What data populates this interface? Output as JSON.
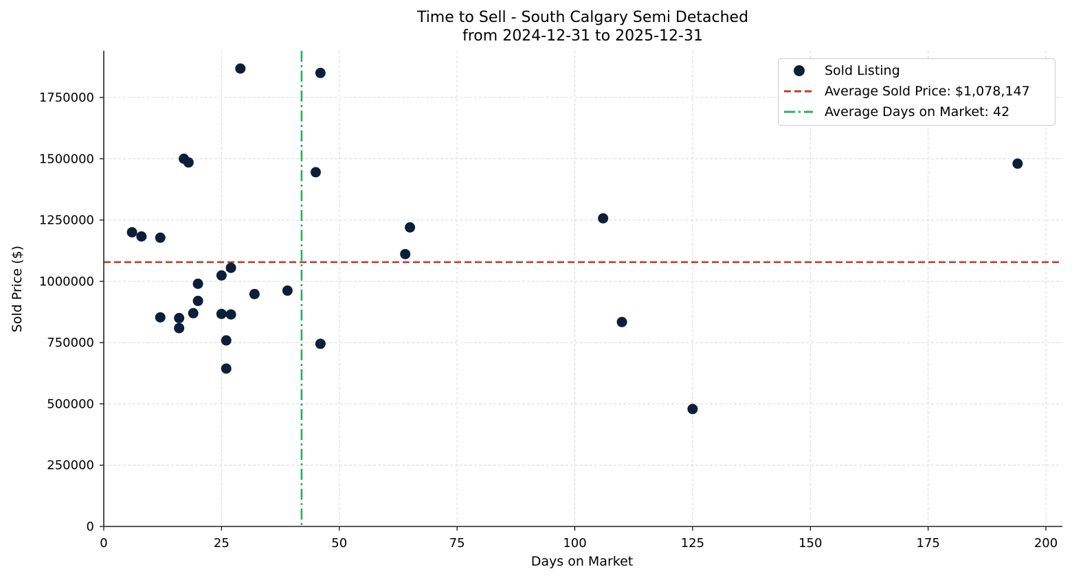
{
  "title": {
    "line1": "Time to Sell - South Calgary Semi Detached",
    "line2": "from 2024-12-31 to 2025-12-31"
  },
  "axes": {
    "xlabel": "Days on Market",
    "ylabel": "Sold Price ($)",
    "xticks": [
      "0",
      "25",
      "50",
      "75",
      "100",
      "125",
      "150",
      "175",
      "200"
    ],
    "yticks": [
      "0",
      "250000",
      "500000",
      "750000",
      "1000000",
      "1250000",
      "1500000",
      "1750000"
    ]
  },
  "legend": {
    "items": [
      {
        "label": "Sold Listing",
        "type": "marker",
        "color": "#0b1f3a"
      },
      {
        "label": "Average Sold Price: $1,078,147",
        "type": "dashed",
        "color": "#c0392b"
      },
      {
        "label": "Average Days on Market: 42",
        "type": "dashdot",
        "color": "#27ae60"
      }
    ]
  },
  "colors": {
    "marker": "#0b1f3a",
    "avg_price_line": "#c0392b",
    "avg_days_line": "#27ae60",
    "grid": "#d9d9d9"
  },
  "chart_data": {
    "type": "scatter",
    "title": "Time to Sell - South Calgary Semi Detached\nfrom 2024-12-31 to 2025-12-31",
    "xlabel": "Days on Market",
    "ylabel": "Sold Price ($)",
    "xlim": [
      0,
      203
    ],
    "ylim": [
      0,
      1940000
    ],
    "grid": true,
    "legend_position": "upper right",
    "series": [
      {
        "name": "Sold Listing",
        "points": [
          [
            6,
            1200000
          ],
          [
            8,
            1183000
          ],
          [
            12,
            1178000
          ],
          [
            17,
            1500000
          ],
          [
            18,
            1485000
          ],
          [
            29,
            1868000
          ],
          [
            46,
            1850000
          ],
          [
            45,
            1445000
          ],
          [
            27,
            1055000
          ],
          [
            25,
            1024000
          ],
          [
            20,
            990000
          ],
          [
            20,
            920000
          ],
          [
            32,
            948000
          ],
          [
            39,
            962000
          ],
          [
            12,
            853000
          ],
          [
            16,
            850000
          ],
          [
            19,
            870000
          ],
          [
            25,
            867000
          ],
          [
            27,
            865000
          ],
          [
            16,
            809000
          ],
          [
            26,
            759000
          ],
          [
            46,
            745000
          ],
          [
            26,
            644000
          ],
          [
            64,
            1111000
          ],
          [
            65,
            1220000
          ],
          [
            106,
            1257000
          ],
          [
            110,
            834000
          ],
          [
            125,
            479000
          ],
          [
            194,
            1480000
          ]
        ]
      }
    ],
    "reference_lines": [
      {
        "name": "Average Sold Price: $1,078,147",
        "orientation": "horizontal",
        "value": 1078147,
        "style": "dashed"
      },
      {
        "name": "Average Days on Market: 42",
        "orientation": "vertical",
        "value": 42,
        "style": "dashdot"
      }
    ]
  }
}
